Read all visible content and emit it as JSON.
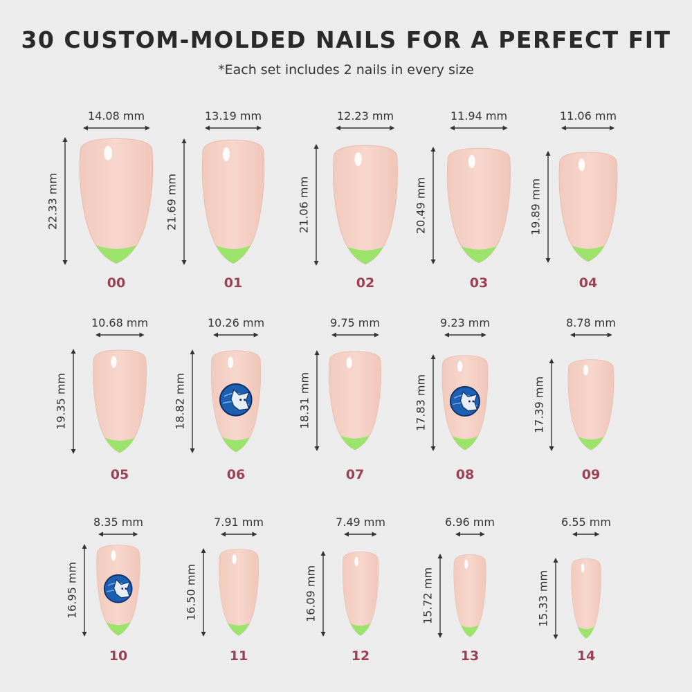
{
  "title": "30 CUSTOM-MOLDED NAILS FOR A PERFECT FIT",
  "subtitle": "*Each set includes 2 nails in every size",
  "colors": {
    "background": "#ececec",
    "nail_base": "#f7d6cc",
    "nail_tip": "#9be36a",
    "size_label": "#9b4155",
    "emblem": "#1d5fb0"
  },
  "emblem_icon": "lynx-emblem-icon",
  "nails": [
    {
      "size": "00",
      "width": "14.08 mm",
      "height": "22.33 mm",
      "emblem": false
    },
    {
      "size": "01",
      "width": "13.19 mm",
      "height": "21.69 mm",
      "emblem": false
    },
    {
      "size": "02",
      "width": "12.23 mm",
      "height": "21.06 mm",
      "emblem": false
    },
    {
      "size": "03",
      "width": "11.94 mm",
      "height": "20.49 mm",
      "emblem": false
    },
    {
      "size": "04",
      "width": "11.06 mm",
      "height": "19.89 mm",
      "emblem": false
    },
    {
      "size": "05",
      "width": "10.68 mm",
      "height": "19.35 mm",
      "emblem": false
    },
    {
      "size": "06",
      "width": "10.26 mm",
      "height": "18.82 mm",
      "emblem": true
    },
    {
      "size": "07",
      "width": "9.75 mm",
      "height": "18.31 mm",
      "emblem": false
    },
    {
      "size": "08",
      "width": "9.23 mm",
      "height": "17.83 mm",
      "emblem": true
    },
    {
      "size": "09",
      "width": "8.78 mm",
      "height": "17.39 mm",
      "emblem": false
    },
    {
      "size": "10",
      "width": "8.35 mm",
      "height": "16.95 mm",
      "emblem": true
    },
    {
      "size": "11",
      "width": "7.91 mm",
      "height": "16.50 mm",
      "emblem": false
    },
    {
      "size": "12",
      "width": "7.49 mm",
      "height": "16.09 mm",
      "emblem": false
    },
    {
      "size": "13",
      "width": "6.96 mm",
      "height": "15.72 mm",
      "emblem": false
    },
    {
      "size": "14",
      "width": "6.55 mm",
      "height": "15.33 mm",
      "emblem": false
    }
  ]
}
